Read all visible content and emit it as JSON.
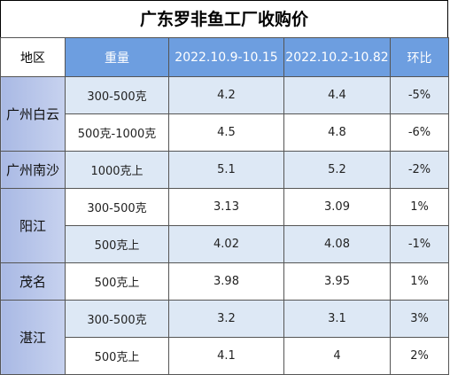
{
  "title": "广东罗非鱼工厂收购价",
  "headers": [
    "地区",
    "重量",
    "2022.10.9-10.15",
    "2022.10.2-10.82",
    "环比"
  ],
  "groups": [
    {
      "region": "广州白云",
      "rows": [
        [
          "300-500克",
          "4.2",
          "4.4",
          "-5%"
        ],
        [
          "500克-1000克",
          "4.5",
          "4.8",
          "-6%"
        ]
      ]
    },
    {
      "region": "广州南沙",
      "rows": [
        [
          "1000克上",
          "5.1",
          "5.2",
          "-2%"
        ]
      ]
    },
    {
      "region": "阳江",
      "rows": [
        [
          "300-500克",
          "3.13",
          "3.09",
          "1%"
        ],
        [
          "500克上",
          "4.02",
          "4.08",
          "-1%"
        ]
      ]
    },
    {
      "region": "茂名",
      "rows": [
        [
          "500克上",
          "3.98",
          "3.95",
          "1%"
        ]
      ]
    },
    {
      "region": "湛江",
      "rows": [
        [
          "300-500克",
          "3.2",
          "3.1",
          "3%"
        ],
        [
          "500克上",
          "4.1",
          "4",
          "2%"
        ]
      ]
    }
  ]
}
